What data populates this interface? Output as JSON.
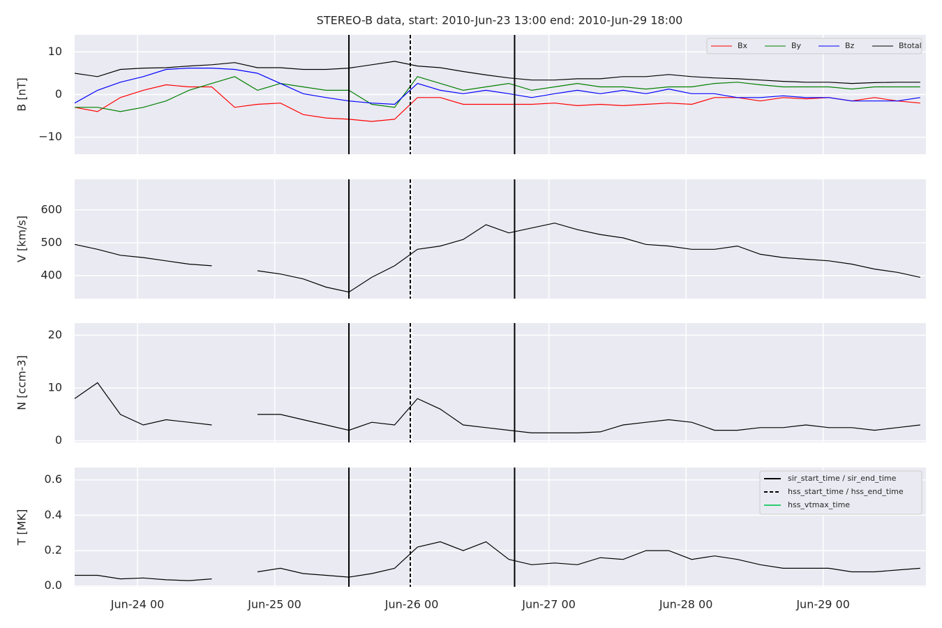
{
  "chart_data": [
    {
      "type": "line",
      "title": "STEREO-B data, start: 2010-Jun-23 13:00  end: 2010-Jun-29 18:00",
      "ylabel": "B [nT]",
      "x": [
        "2010-06-23 13:00",
        "2010-06-23 17:00",
        "2010-06-23 21:00",
        "2010-06-24 01:00",
        "2010-06-24 05:00",
        "2010-06-24 09:00",
        "2010-06-24 13:00",
        "2010-06-24 17:00",
        "2010-06-24 21:00",
        "2010-06-25 01:00",
        "2010-06-25 05:00",
        "2010-06-25 09:00",
        "2010-06-25 13:00",
        "2010-06-25 17:00",
        "2010-06-25 21:00",
        "2010-06-26 01:00",
        "2010-06-26 05:00",
        "2010-06-26 09:00",
        "2010-06-26 13:00",
        "2010-06-26 17:00",
        "2010-06-26 21:00",
        "2010-06-27 01:00",
        "2010-06-27 05:00",
        "2010-06-27 09:00",
        "2010-06-27 13:00",
        "2010-06-27 17:00",
        "2010-06-27 21:00",
        "2010-06-28 01:00",
        "2010-06-28 05:00",
        "2010-06-28 09:00",
        "2010-06-28 13:00",
        "2010-06-28 17:00",
        "2010-06-28 21:00",
        "2010-06-29 01:00",
        "2010-06-29 05:00",
        "2010-06-29 09:00",
        "2010-06-29 13:00",
        "2010-06-29 17:00"
      ],
      "xlim": [
        "2010-06-23 13:00",
        "2010-06-29 18:00"
      ],
      "ylim": [
        -14,
        14
      ],
      "yticks": [
        {
          "value": -10,
          "label": "−10"
        },
        0,
        10
      ],
      "grid": true,
      "legend": "upper right",
      "series": [
        {
          "name": "Bx",
          "color": "#ff0000",
          "values": [
            -3,
            -4,
            -0.7,
            1,
            2.3,
            1.8,
            1.8,
            -3,
            -2.3,
            -2,
            -4.7,
            -5.5,
            -5.8,
            -6.3,
            -5.8,
            -0.7,
            -0.7,
            -2.3,
            -2.3,
            -2.3,
            -2.3,
            -2,
            -2.6,
            -2.3,
            -2.6,
            -2.3,
            -2,
            -2.3,
            -0.7,
            -0.7,
            -1.5,
            -0.7,
            -1,
            -0.7,
            -1.5,
            -0.7,
            -1.5,
            -2
          ]
        },
        {
          "name": "By",
          "color": "#008000",
          "values": [
            -3,
            -3,
            -4,
            -3,
            -1.5,
            1,
            2.6,
            4.2,
            1,
            2.6,
            1.8,
            1,
            1,
            -2.3,
            -3,
            4.2,
            2.6,
            1,
            1.8,
            2.6,
            1,
            1.8,
            2.6,
            1.8,
            1.8,
            1.3,
            1.8,
            1.8,
            2.6,
            2.9,
            2.3,
            1.8,
            1.8,
            1.8,
            1.3,
            1.8,
            1.8,
            1.8
          ]
        },
        {
          "name": "Bz",
          "color": "#0000ff",
          "values": [
            -2,
            1,
            2.9,
            4.2,
            5.9,
            6.2,
            6.2,
            5.9,
            5,
            2.6,
            0.2,
            -0.7,
            -1.5,
            -2,
            -2.3,
            2.6,
            1,
            0.2,
            1,
            0.2,
            -0.7,
            0.2,
            1,
            0.2,
            1,
            0.2,
            1.3,
            0.2,
            0.2,
            -0.7,
            -0.7,
            -0.3,
            -0.7,
            -0.7,
            -1.5,
            -1.5,
            -1.5,
            -0.7
          ]
        },
        {
          "name": "Btotal",
          "color": "#000000",
          "values": [
            5,
            4.2,
            5.9,
            6.2,
            6.3,
            6.7,
            7,
            7.5,
            6.3,
            6.3,
            5.9,
            5.9,
            6.2,
            7,
            7.8,
            6.7,
            6.3,
            5.4,
            4.6,
            3.9,
            3.4,
            3.4,
            3.7,
            3.7,
            4.2,
            4.2,
            4.7,
            4.2,
            3.9,
            3.7,
            3.4,
            3.1,
            2.9,
            2.9,
            2.6,
            2.8,
            2.9,
            2.9
          ]
        }
      ]
    },
    {
      "type": "line",
      "ylabel": "V [km/s]",
      "x": [
        "2010-06-23 13:00",
        "2010-06-23 17:00",
        "2010-06-23 21:00",
        "2010-06-24 01:00",
        "2010-06-24 05:00",
        "2010-06-24 09:00",
        "2010-06-24 13:00",
        "2010-06-24 17:00",
        "2010-06-24 21:00",
        "2010-06-25 01:00",
        "2010-06-25 05:00",
        "2010-06-25 09:00",
        "2010-06-25 13:00",
        "2010-06-25 17:00",
        "2010-06-25 21:00",
        "2010-06-26 01:00",
        "2010-06-26 05:00",
        "2010-06-26 09:00",
        "2010-06-26 13:00",
        "2010-06-26 17:00",
        "2010-06-26 21:00",
        "2010-06-27 01:00",
        "2010-06-27 05:00",
        "2010-06-27 09:00",
        "2010-06-27 13:00",
        "2010-06-27 17:00",
        "2010-06-27 21:00",
        "2010-06-28 01:00",
        "2010-06-28 05:00",
        "2010-06-28 09:00",
        "2010-06-28 13:00",
        "2010-06-28 17:00",
        "2010-06-28 21:00",
        "2010-06-29 01:00",
        "2010-06-29 05:00",
        "2010-06-29 09:00",
        "2010-06-29 13:00",
        "2010-06-29 17:00"
      ],
      "xlim": [
        "2010-06-23 13:00",
        "2010-06-29 18:00"
      ],
      "ylim": [
        330,
        693
      ],
      "yticks": [
        400,
        500,
        600
      ],
      "grid": true,
      "series": [
        {
          "color": "#000000",
          "values": [
            495,
            480,
            462,
            455,
            445,
            435,
            430,
            null,
            415,
            405,
            390,
            365,
            350,
            395,
            430,
            480,
            490,
            510,
            555,
            530,
            545,
            560,
            540,
            525,
            515,
            495,
            490,
            480,
            480,
            490,
            465,
            455,
            450,
            445,
            435,
            420,
            410,
            395
          ]
        }
      ]
    },
    {
      "type": "line",
      "ylabel": "N [ccm-3]",
      "x": [
        "2010-06-23 13:00",
        "2010-06-23 17:00",
        "2010-06-23 21:00",
        "2010-06-24 01:00",
        "2010-06-24 05:00",
        "2010-06-24 09:00",
        "2010-06-24 13:00",
        "2010-06-24 17:00",
        "2010-06-24 21:00",
        "2010-06-25 01:00",
        "2010-06-25 05:00",
        "2010-06-25 09:00",
        "2010-06-25 13:00",
        "2010-06-25 17:00",
        "2010-06-25 21:00",
        "2010-06-26 01:00",
        "2010-06-26 05:00",
        "2010-06-26 09:00",
        "2010-06-26 13:00",
        "2010-06-26 17:00",
        "2010-06-26 21:00",
        "2010-06-27 01:00",
        "2010-06-27 05:00",
        "2010-06-27 09:00",
        "2010-06-27 13:00",
        "2010-06-27 17:00",
        "2010-06-27 21:00",
        "2010-06-28 01:00",
        "2010-06-28 05:00",
        "2010-06-28 09:00",
        "2010-06-28 13:00",
        "2010-06-28 17:00",
        "2010-06-28 21:00",
        "2010-06-29 01:00",
        "2010-06-29 05:00",
        "2010-06-29 09:00",
        "2010-06-29 13:00",
        "2010-06-29 17:00"
      ],
      "xlim": [
        "2010-06-23 13:00",
        "2010-06-29 18:00"
      ],
      "ylim": [
        -0.3,
        22.3
      ],
      "yticks": [
        0,
        10,
        20
      ],
      "grid": true,
      "series": [
        {
          "color": "#000000",
          "values": [
            8,
            11,
            5,
            3,
            4,
            3.5,
            3,
            null,
            5,
            5,
            4,
            3,
            2,
            3.5,
            3,
            8,
            6,
            3,
            2.5,
            2,
            1.5,
            1.5,
            1.5,
            1.7,
            3,
            3.5,
            4,
            3.5,
            2,
            2,
            2.5,
            2.5,
            3,
            2.5,
            2.5,
            2,
            2.5,
            3
          ]
        }
      ]
    },
    {
      "type": "line",
      "ylabel": "T [MK]",
      "x": [
        "2010-06-23 13:00",
        "2010-06-23 17:00",
        "2010-06-23 21:00",
        "2010-06-24 01:00",
        "2010-06-24 05:00",
        "2010-06-24 09:00",
        "2010-06-24 13:00",
        "2010-06-24 17:00",
        "2010-06-24 21:00",
        "2010-06-25 01:00",
        "2010-06-25 05:00",
        "2010-06-25 09:00",
        "2010-06-25 13:00",
        "2010-06-25 17:00",
        "2010-06-25 21:00",
        "2010-06-26 01:00",
        "2010-06-26 05:00",
        "2010-06-26 09:00",
        "2010-06-26 13:00",
        "2010-06-26 17:00",
        "2010-06-26 21:00",
        "2010-06-27 01:00",
        "2010-06-27 05:00",
        "2010-06-27 09:00",
        "2010-06-27 13:00",
        "2010-06-27 17:00",
        "2010-06-27 21:00",
        "2010-06-28 01:00",
        "2010-06-28 05:00",
        "2010-06-28 09:00",
        "2010-06-28 13:00",
        "2010-06-28 17:00",
        "2010-06-28 21:00",
        "2010-06-29 01:00",
        "2010-06-29 05:00",
        "2010-06-29 09:00",
        "2010-06-29 13:00",
        "2010-06-29 17:00"
      ],
      "xlim": [
        "2010-06-23 13:00",
        "2010-06-29 18:00"
      ],
      "xticks": [
        {
          "value": "2010-06-24 00:00",
          "label": "Jun-24 00"
        },
        {
          "value": "2010-06-25 00:00",
          "label": "Jun-25 00"
        },
        {
          "value": "2010-06-26 00:00",
          "label": "Jun-26 00"
        },
        {
          "value": "2010-06-27 00:00",
          "label": "Jun-27 00"
        },
        {
          "value": "2010-06-28 00:00",
          "label": "Jun-28 00"
        },
        {
          "value": "2010-06-29 00:00",
          "label": "Jun-29 00"
        }
      ],
      "ylim": [
        -0.005,
        0.67
      ],
      "yticks": [
        {
          "value": 0,
          "label": "0.0"
        },
        0.2,
        0.4,
        0.6
      ],
      "grid": true,
      "legend": "upper right",
      "series": [
        {
          "color": "#000000",
          "values": [
            0.06,
            0.06,
            0.04,
            0.045,
            0.035,
            0.03,
            0.04,
            null,
            0.08,
            0.1,
            0.07,
            0.06,
            0.05,
            0.07,
            0.1,
            0.22,
            0.25,
            0.2,
            0.25,
            0.15,
            0.12,
            0.13,
            0.12,
            0.16,
            0.15,
            0.2,
            0.2,
            0.15,
            0.17,
            0.15,
            0.12,
            0.1,
            0.1,
            0.1,
            0.08,
            0.08,
            0.09,
            0.1
          ]
        }
      ],
      "vlines": [
        {
          "name": "sir_start_time / sir_end_time",
          "color": "#000000",
          "dashed": false,
          "x": [
            "2010-06-25 13:00",
            "2010-06-26 18:00"
          ]
        },
        {
          "name": "hss_start_time / hss_end_time",
          "color": "#000000",
          "dashed": true,
          "x": [
            "2010-06-25 23:45"
          ]
        },
        {
          "name": "hss_vtmax_time",
          "color": "#2ecc71",
          "dashed": false,
          "x": []
        }
      ]
    }
  ]
}
